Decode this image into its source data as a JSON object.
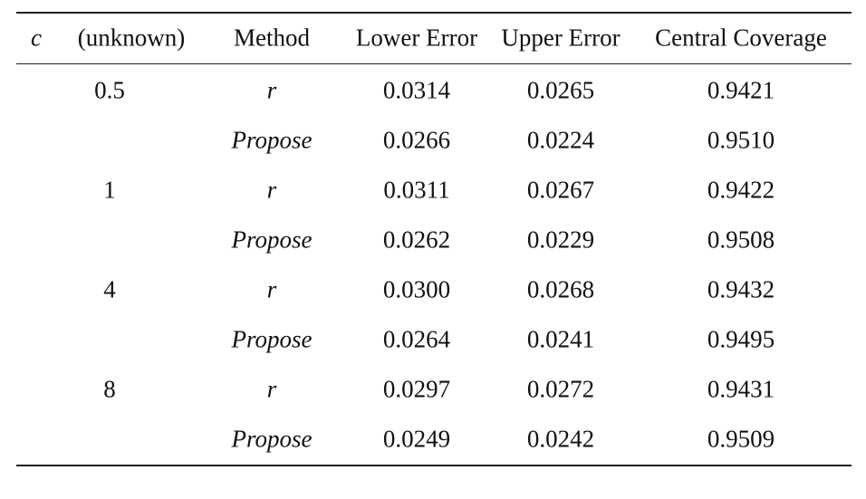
{
  "table": {
    "header": [
      "c",
      "(unknown)",
      "Method",
      "Lower Error",
      "Upper Error",
      "Central Coverage"
    ],
    "groups": [
      {
        "c": "0.5",
        "rows": [
          [
            "r",
            "0.0314",
            "0.0265",
            "0.9421"
          ],
          [
            "Propose",
            "0.0266",
            "0.0224",
            "0.9510"
          ]
        ]
      },
      {
        "c": "1",
        "rows": [
          [
            "r",
            "0.0311",
            "0.0267",
            "0.9422"
          ],
          [
            "Propose",
            "0.0262",
            "0.0229",
            "0.9508"
          ]
        ]
      },
      {
        "c": "4",
        "rows": [
          [
            "r",
            "0.0300",
            "0.0268",
            "0.9432"
          ],
          [
            "Propose",
            "0.0264",
            "0.0241",
            "0.9495"
          ]
        ]
      },
      {
        "c": "8",
        "rows": [
          [
            "r",
            "0.0297",
            "0.0272",
            "0.9431"
          ],
          [
            "Propose",
            "0.0249",
            "0.0242",
            "0.9509"
          ]
        ]
      }
    ]
  }
}
